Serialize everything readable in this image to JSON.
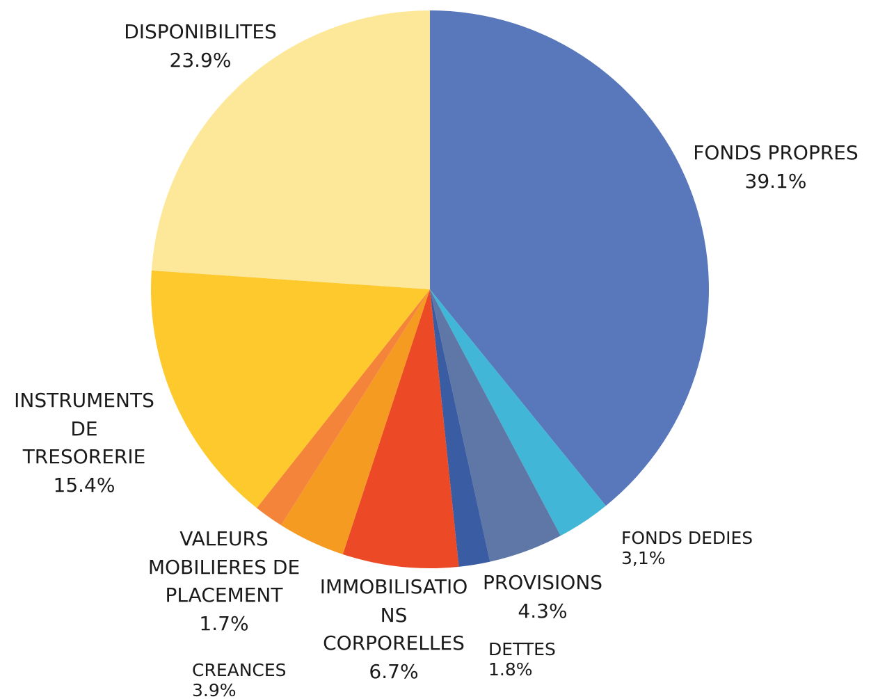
{
  "chart_data": {
    "type": "pie",
    "categories": [
      "FONDS PROPRES",
      "FONDS DEDIES",
      "PROVISIONS",
      "DETTES",
      "IMMOBILISATIONS CORPORELLES",
      "CREANCES",
      "VALEURS MOBILIERES DE PLACEMENT",
      "INSTRUMENTS DE TRESORERIE",
      "DISPONIBILITES"
    ],
    "values": [
      39.1,
      3.1,
      4.3,
      1.8,
      6.7,
      3.9,
      1.7,
      15.4,
      23.9
    ],
    "value_labels": [
      "39.1%",
      "3,1%",
      "4.3%",
      "1.8%",
      "6.7%",
      "3.9%",
      "1.7%",
      "15.4%",
      "23.9%"
    ],
    "colors": [
      "#5878bb",
      "#41b6d6",
      "#5f77a6",
      "#3a5ca3",
      "#ec4a26",
      "#f59b22",
      "#f4843a",
      "#fdc92d",
      "#fde899"
    ]
  }
}
